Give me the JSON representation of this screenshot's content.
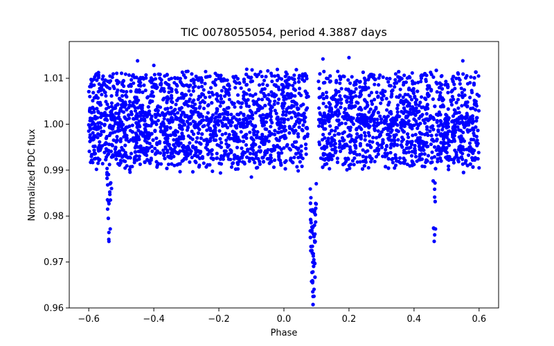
{
  "chart_data": {
    "type": "scatter",
    "title": "TIC 0078055054, period 4.3887 days",
    "xlabel": "Phase",
    "ylabel": "Normalized PDC flux",
    "xlim": [
      -0.66,
      0.66
    ],
    "ylim": [
      0.96,
      1.018
    ],
    "xticks": [
      -0.6,
      -0.4,
      -0.2,
      0.0,
      0.2,
      0.4,
      0.6
    ],
    "xtick_labels": [
      "−0.6",
      "−0.4",
      "−0.2",
      "0.0",
      "0.2",
      "0.4",
      "0.6"
    ],
    "yticks": [
      0.96,
      0.97,
      0.98,
      0.99,
      1.0,
      1.01
    ],
    "ytick_labels": [
      "0.96",
      "0.97",
      "0.98",
      "0.99",
      "1.00",
      "1.01"
    ],
    "marker_color": "#0000ff",
    "phase_range": [
      -0.6,
      0.6
    ],
    "flux_band": [
      0.99,
      1.011
    ],
    "primary_eclipse": {
      "center": 0.09,
      "width": 0.014,
      "min_flux": 0.9625,
      "gap": [
        0.075,
        0.105
      ]
    },
    "secondary_eclipses": [
      {
        "center": -0.538,
        "width": 0.008,
        "min_flux": 0.9745
      },
      {
        "center": 0.462,
        "width": 0.008,
        "min_flux": 0.9745
      }
    ],
    "sample_points": [
      [
        -0.6,
        0.9985
      ],
      [
        -0.55,
        1.001
      ],
      [
        -0.538,
        0.9745
      ],
      [
        -0.534,
        0.9772
      ],
      [
        -0.53,
        0.986
      ],
      [
        -0.45,
        1.0138
      ],
      [
        -0.4,
        1.0128
      ],
      [
        -0.3,
        1.0085
      ],
      [
        -0.1,
        0.9885
      ],
      [
        0.0,
        1.0053
      ],
      [
        0.083,
        0.984
      ],
      [
        0.086,
        0.9725
      ],
      [
        0.088,
        0.9655
      ],
      [
        0.09,
        0.9625
      ],
      [
        0.092,
        0.9705
      ],
      [
        0.094,
        0.978
      ],
      [
        0.12,
        1.0142
      ],
      [
        0.2,
        1.0145
      ],
      [
        0.3,
        0.9955
      ],
      [
        0.462,
        0.9745
      ],
      [
        0.466,
        0.9772
      ],
      [
        0.55,
        1.0138
      ],
      [
        0.6,
        0.9905
      ]
    ],
    "n_points": 3600
  }
}
